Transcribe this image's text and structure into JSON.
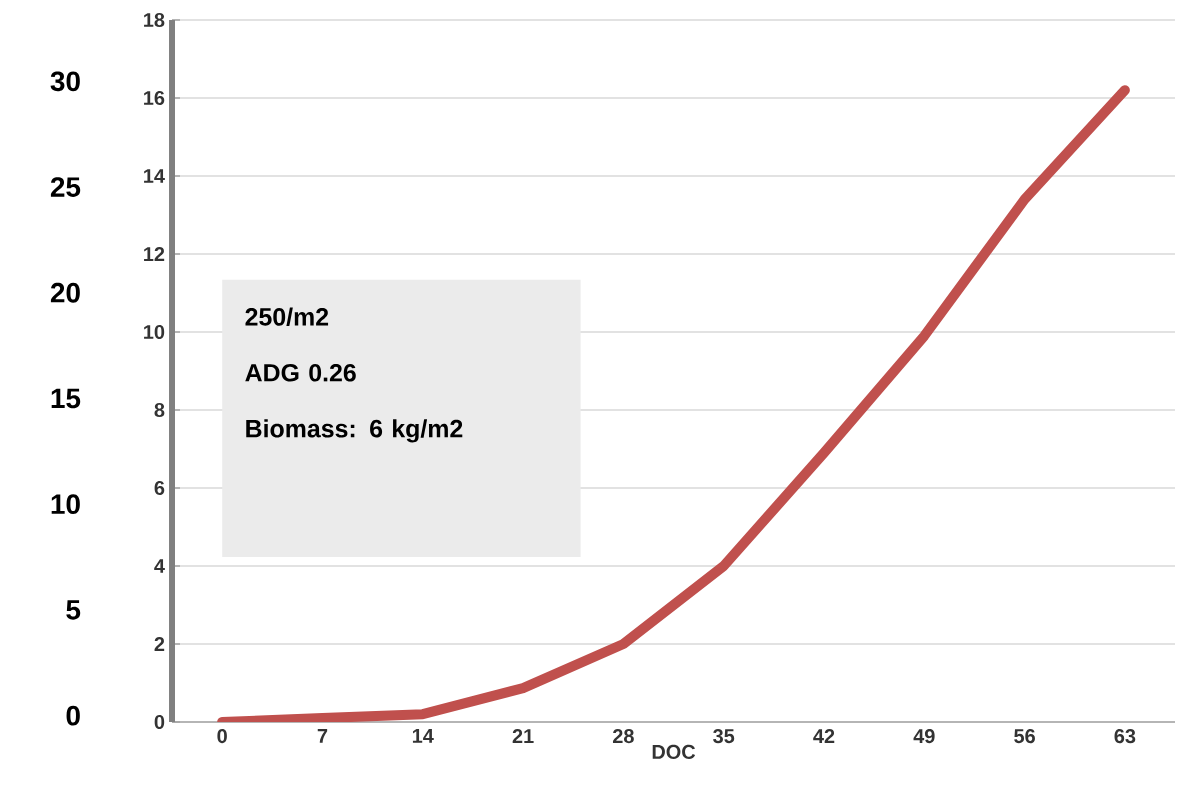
{
  "chart_data": {
    "type": "line",
    "xlabel": "DOC",
    "categories": [
      "0",
      "7",
      "14",
      "21",
      "28",
      "35",
      "42",
      "49",
      "56",
      "63"
    ],
    "series": [
      {
        "color": "#c0504d",
        "values": [
          0,
          0.1,
          0.2,
          0.87,
          2.0,
          4.0,
          6.9,
          9.9,
          13.4,
          16.2
        ]
      }
    ],
    "ylim": [
      0,
      18
    ],
    "yticks": [
      0,
      2,
      4,
      6,
      8,
      10,
      12,
      14,
      16,
      18
    ],
    "y2lim": [
      -0.3,
      32.9
    ],
    "y2ticks": [
      0,
      5,
      10,
      15,
      20,
      25,
      30
    ],
    "grid": "y",
    "marker": "none",
    "line_style": "solid",
    "annotations": [
      "250/m2",
      "ADG 0.26",
      "Biomass:  6 kg/m2"
    ]
  }
}
